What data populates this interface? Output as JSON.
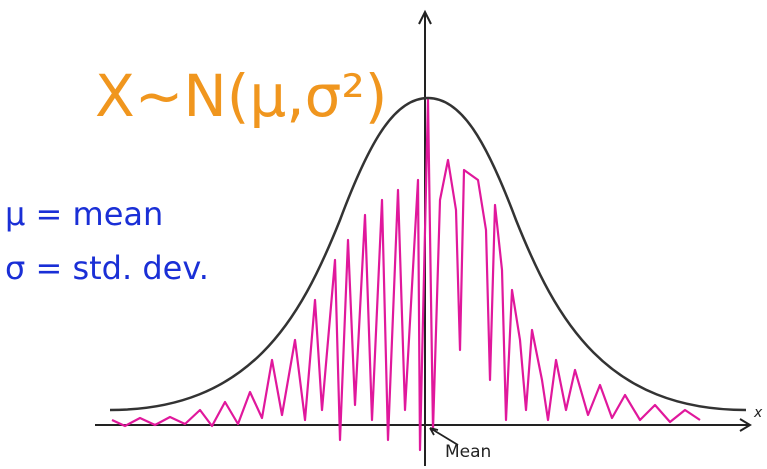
{
  "formula": "X~N(μ,σ²)",
  "notes": [
    "μ = mean",
    "σ = std. dev."
  ],
  "axis_label": "x",
  "mean_label": "Mean"
}
